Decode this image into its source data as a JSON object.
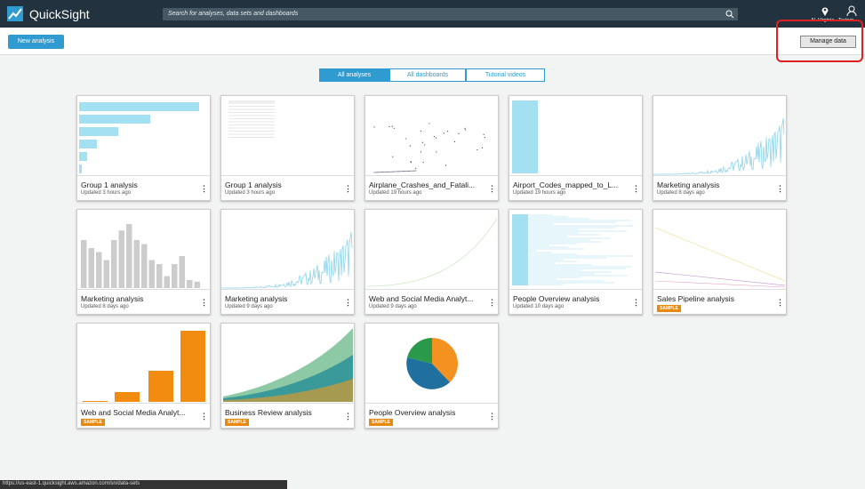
{
  "header": {
    "brand": "QuickSight",
    "search_placeholder": "Search for analyses, data sets and dashboards",
    "region": "N. Virginia",
    "user": "Trainor"
  },
  "toolbar": {
    "new_analysis": "New analysis",
    "manage_data": "Manage data"
  },
  "tabs": [
    "All analyses",
    "All dashboards",
    "Tutorial videos"
  ],
  "cards": [
    {
      "title": "Group 1 analysis",
      "subtitle": "Updated 3 hours ago"
    },
    {
      "title": "Group 1 analysis",
      "subtitle": "Updated 3 hours ago"
    },
    {
      "title": "Airplane_Crashes_and_Fatali...",
      "subtitle": "Updated 19 hours ago"
    },
    {
      "title": "Airport_Codes_mapped_to_L...",
      "subtitle": "Updated 19 hours ago"
    },
    {
      "title": "Marketing analysis",
      "subtitle": "Updated 8 days ago"
    },
    {
      "title": "Marketing analysis",
      "subtitle": "Updated 8 days ago"
    },
    {
      "title": "Marketing analysis",
      "subtitle": "Updated 9 days ago"
    },
    {
      "title": "Web and Social Media Analyt...",
      "subtitle": "Updated 9 days ago"
    },
    {
      "title": "People Overview analysis",
      "subtitle": "Updated 10 days ago"
    },
    {
      "title": "Sales Pipeline analysis",
      "badge": "SAMPLE"
    },
    {
      "title": "Web and Social Media Analyt...",
      "badge": "SAMPLE"
    },
    {
      "title": "Business Review analysis",
      "badge": "SAMPLE"
    },
    {
      "title": "People Overview analysis",
      "badge": "SAMPLE"
    }
  ],
  "status_url": "https://us-east-1.quicksight.aws.amazon.com/sn/data-sets"
}
